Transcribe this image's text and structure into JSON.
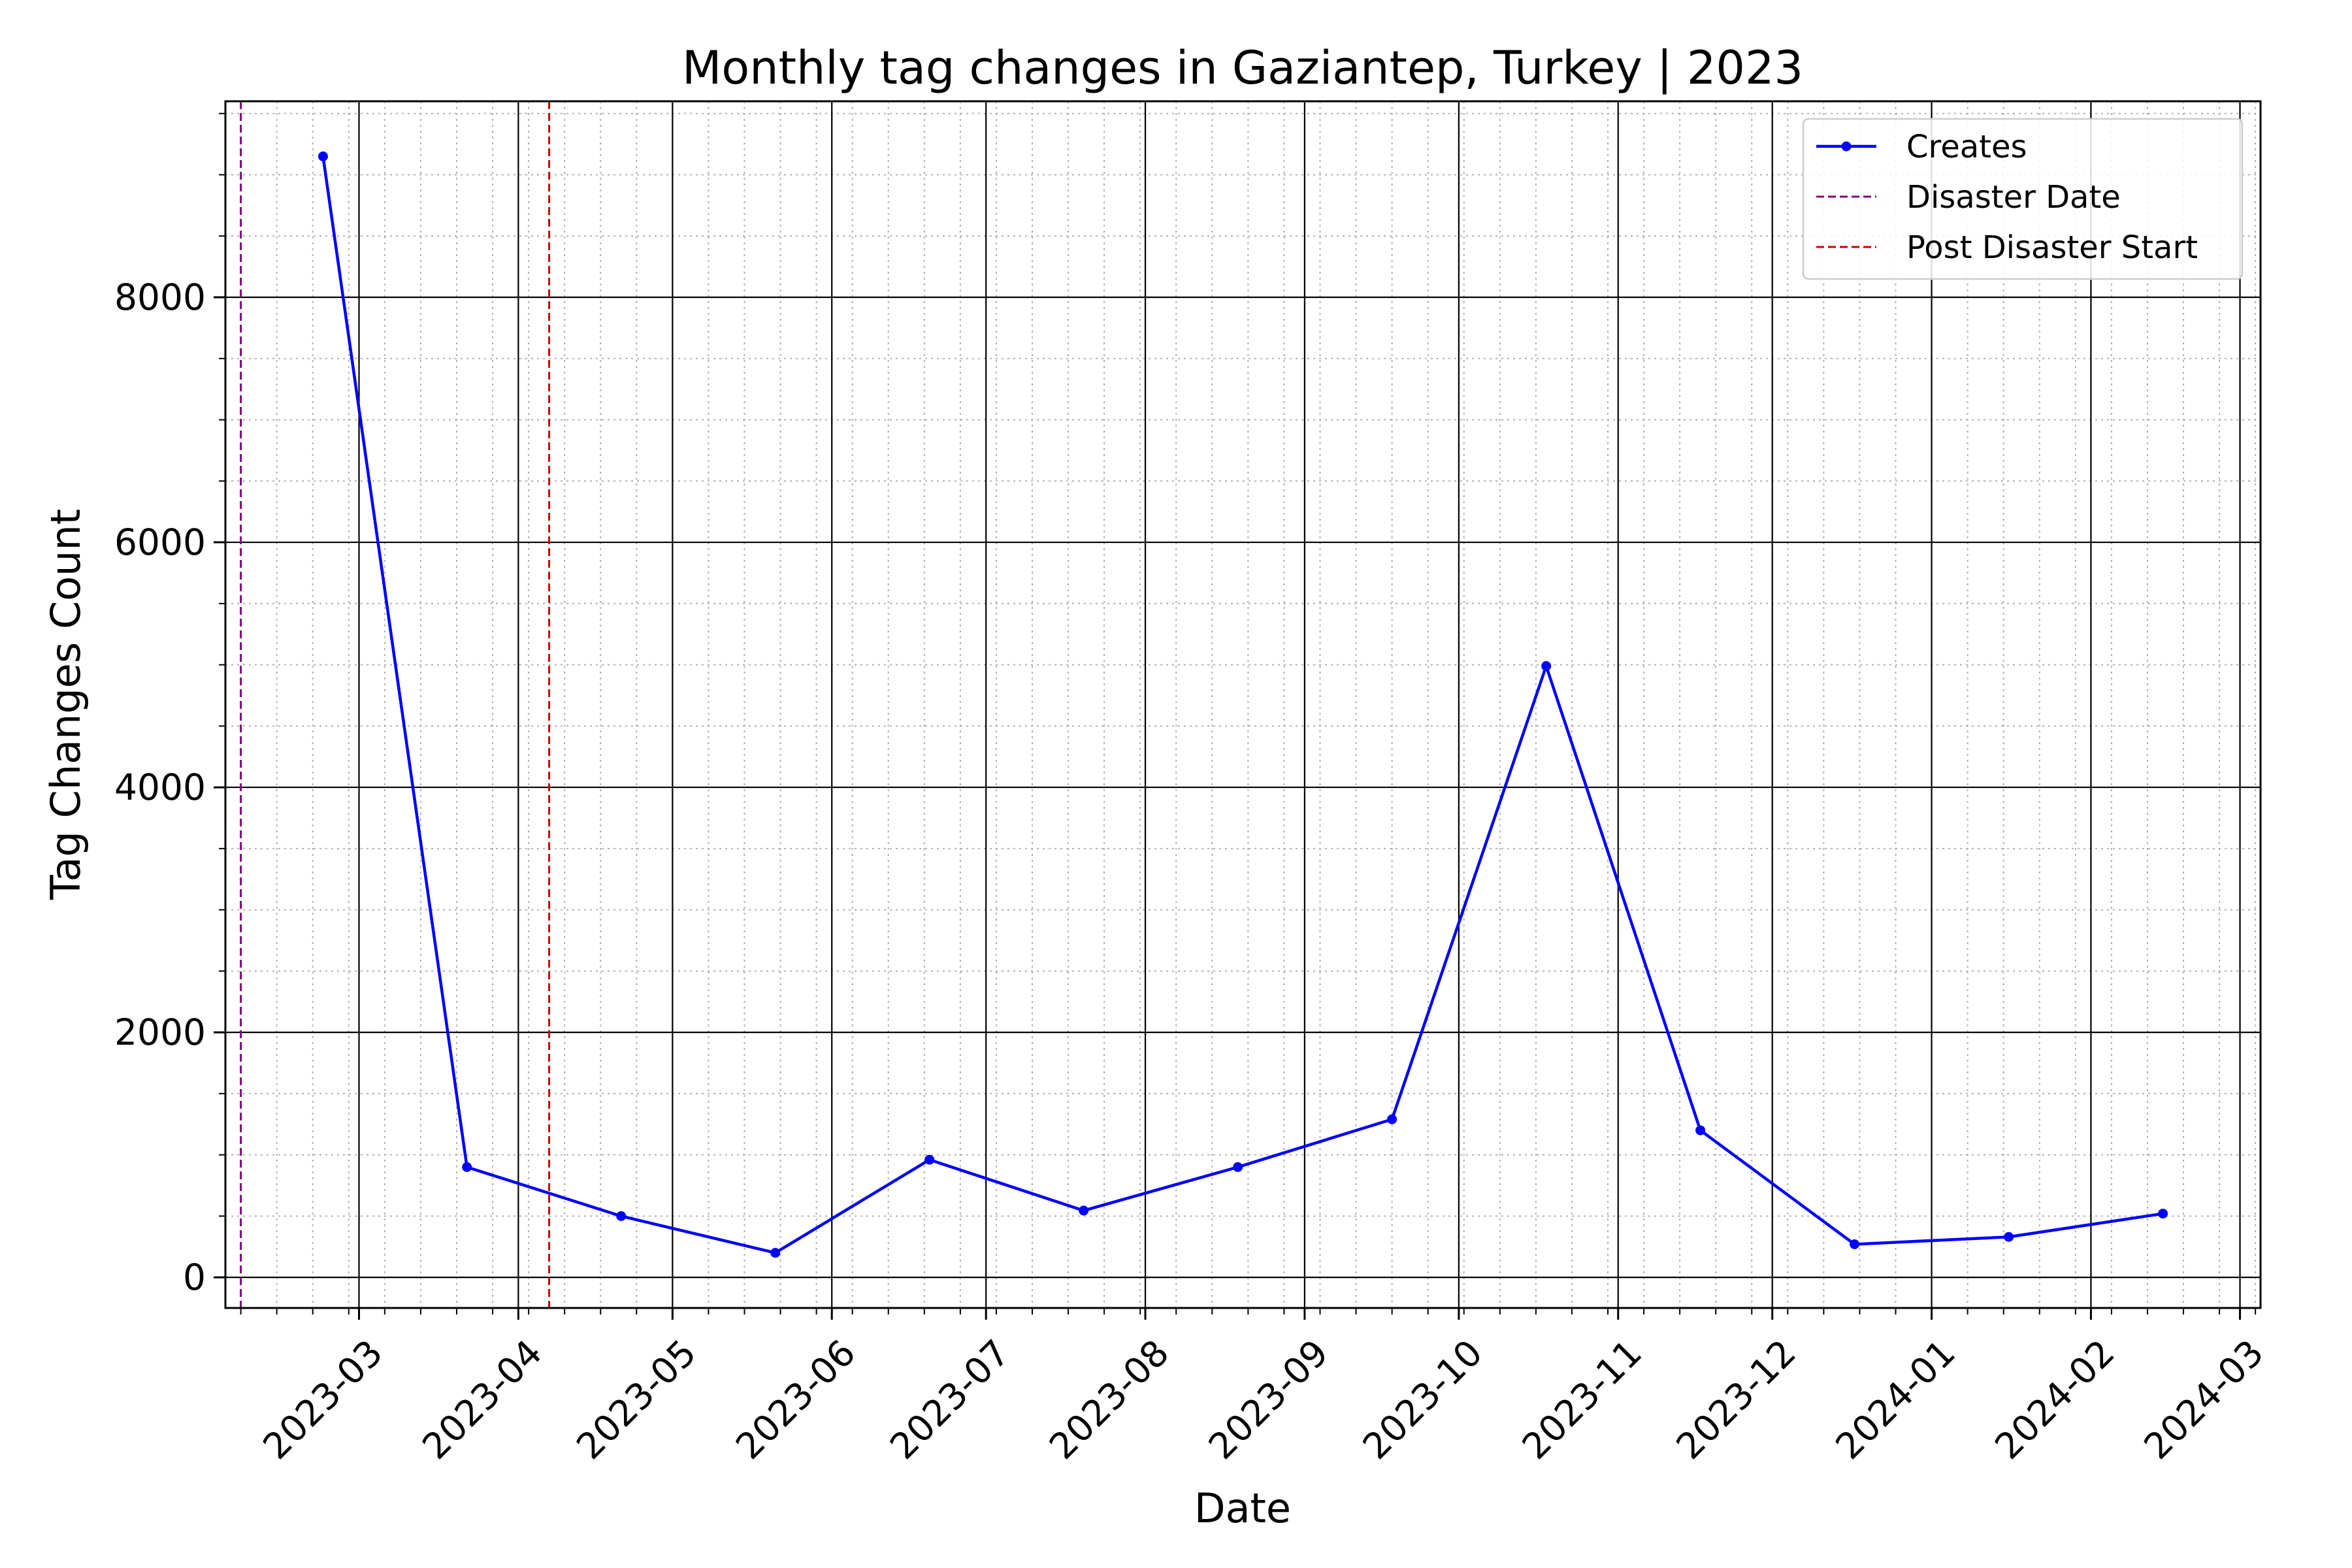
{
  "chart_data": {
    "type": "line",
    "title": "Monthly tag changes in Gaziantep, Turkey | 2023",
    "xlabel": "Date",
    "ylabel": "Tag Changes Count",
    "x_ticks": [
      "2023-03",
      "2023-04",
      "2023-05",
      "2023-06",
      "2023-07",
      "2023-08",
      "2023-09",
      "2023-10",
      "2023-11",
      "2023-12",
      "2024-01",
      "2024-02",
      "2024-03"
    ],
    "y_ticks": [
      0,
      2000,
      4000,
      6000,
      8000
    ],
    "ylim": [
      -250,
      9600
    ],
    "xlim": [
      "2023-02-03",
      "2024-03-05"
    ],
    "grid": "major solid, minor dotted",
    "legend_position": "top-right",
    "series": [
      {
        "name": "Creates",
        "color": "#0000ff",
        "marker": "dot",
        "points": [
          {
            "x": "2023-02-22",
            "y": 9150
          },
          {
            "x": "2023-03-22",
            "y": 900
          },
          {
            "x": "2023-04-21",
            "y": 500
          },
          {
            "x": "2023-05-21",
            "y": 200
          },
          {
            "x": "2023-06-20",
            "y": 960
          },
          {
            "x": "2023-07-20",
            "y": 545
          },
          {
            "x": "2023-08-19",
            "y": 900
          },
          {
            "x": "2023-09-18",
            "y": 1290
          },
          {
            "x": "2023-10-18",
            "y": 4990
          },
          {
            "x": "2023-11-17",
            "y": 1200
          },
          {
            "x": "2023-12-17",
            "y": 270
          },
          {
            "x": "2024-01-16",
            "y": 330
          },
          {
            "x": "2024-02-15",
            "y": 520
          }
        ]
      }
    ],
    "vlines": [
      {
        "name": "Disaster Date",
        "x": "2023-02-06",
        "color": "#800080",
        "style": "dashed"
      },
      {
        "name": "Post Disaster Start",
        "x": "2023-04-07",
        "color": "#cc0000",
        "style": "dashed"
      }
    ]
  }
}
